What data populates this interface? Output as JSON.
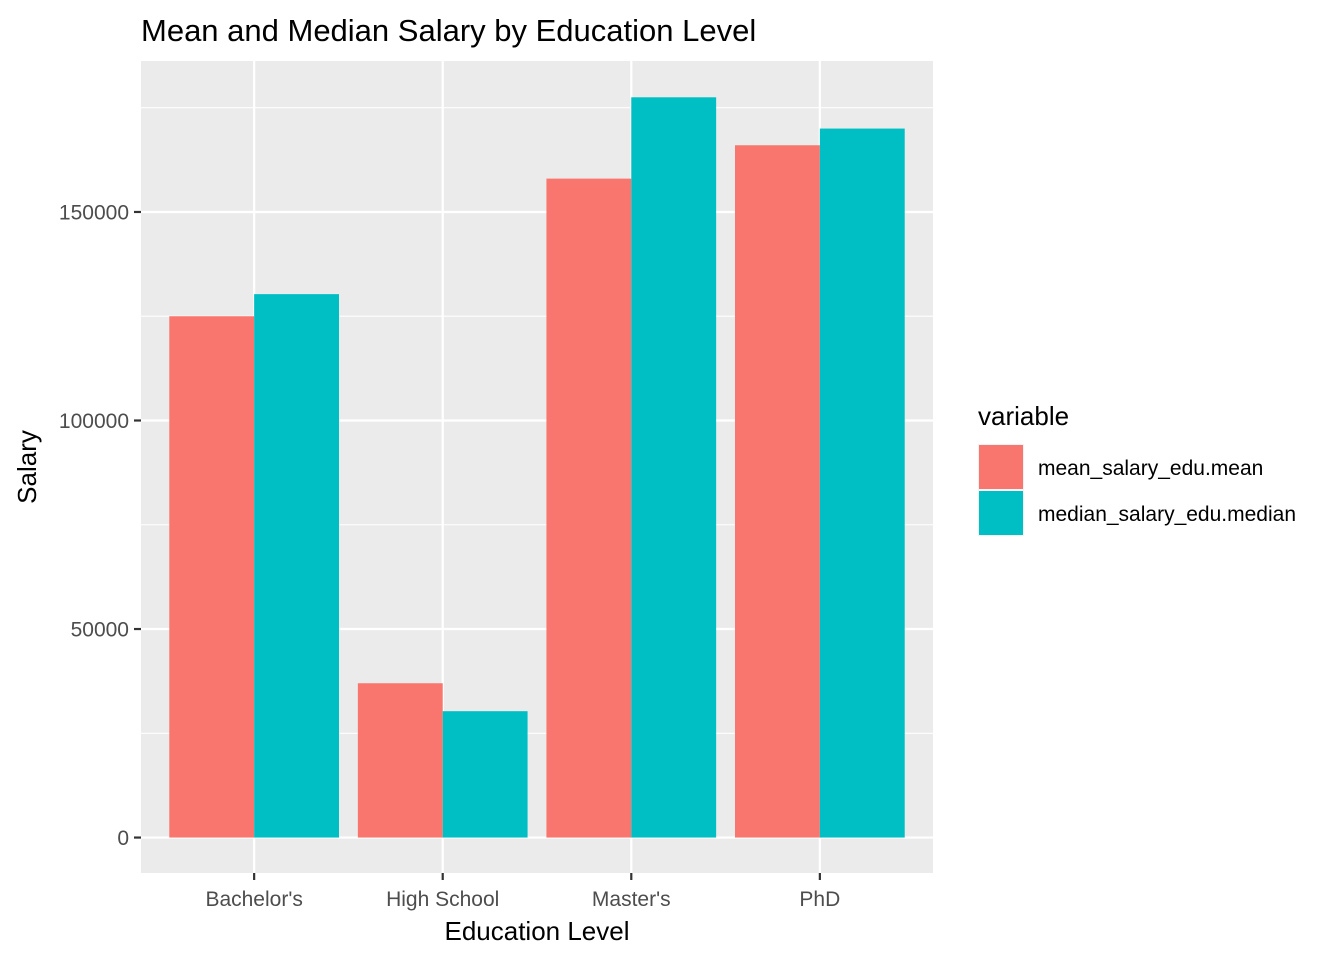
{
  "chart_data": {
    "type": "bar",
    "title": "Mean and Median Salary by Education Level",
    "xlabel": "Education Level",
    "ylabel": "Salary",
    "categories": [
      "Bachelor's",
      "High School",
      "Master's",
      "PhD"
    ],
    "series": [
      {
        "name": "mean_salary_edu.mean",
        "color": "#F8766D",
        "values": [
          125000,
          37000,
          158000,
          166000
        ]
      },
      {
        "name": "median_salary_edu.median",
        "color": "#00BFC4",
        "values": [
          130300,
          30300,
          177500,
          170000
        ]
      }
    ],
    "ylim": [
      -8500,
      186200
    ],
    "yticks": [
      0,
      50000,
      100000,
      150000
    ],
    "yticks_labels": [
      "0",
      "50000",
      "100000",
      "150000"
    ],
    "legend": {
      "title": "variable",
      "position": "right"
    },
    "grid": true,
    "panel_background": "#EBEBEB",
    "grid_color": "#FFFFFF"
  }
}
